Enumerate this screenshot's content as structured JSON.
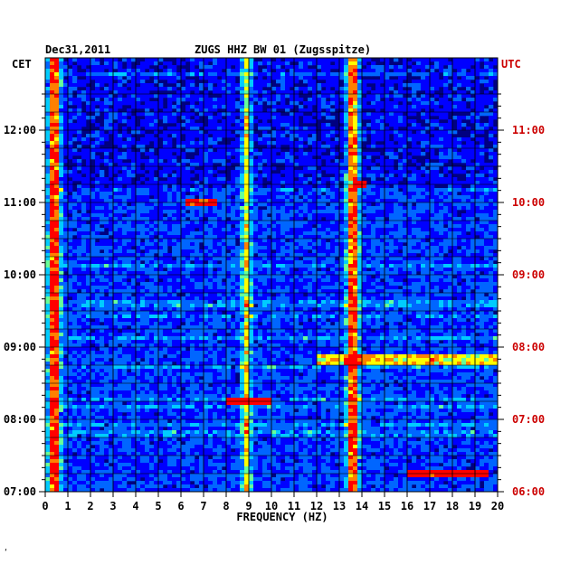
{
  "header": {
    "date": "Dec31,2011",
    "station": "ZUGS HHZ BW 01 (Zugsspitze)"
  },
  "axes": {
    "left_zone": "CET",
    "right_zone": "UTC",
    "right_color": "#cc0000"
  },
  "footer_mark": "‘",
  "chart_data": {
    "type": "heatmap",
    "title": "ZUGS HHZ BW 01 (Zugsspitze)",
    "xlabel": "FREQUENCY (HZ)",
    "ylabel": "",
    "xlim": [
      0,
      20
    ],
    "xticks": [
      "0",
      "1",
      "2",
      "3",
      "4",
      "5",
      "6",
      "7",
      "8",
      "9",
      "10",
      "11",
      "12",
      "13",
      "14",
      "15",
      "16",
      "17",
      "18",
      "19",
      "20"
    ],
    "left_time_range": [
      "07:00",
      "12:30"
    ],
    "left_ticks": [
      "12:00",
      "11:00",
      "10:00",
      "09:00",
      "08:00",
      "07:00"
    ],
    "right_ticks": [
      "11:00",
      "10:00",
      "09:00",
      "08:00",
      "07:00",
      "06:00"
    ],
    "grid": true,
    "colormap": [
      "#000080",
      "#0000ff",
      "#0066ff",
      "#00ccff",
      "#66ff99",
      "#ffff00",
      "#ff8000",
      "#ff0000"
    ],
    "persistent_lines_hz": [
      0.3,
      0.5,
      8.9,
      13.5,
      13.7
    ],
    "events": [
      {
        "time": "11:00",
        "freq_hz": [
          6.2,
          7.6
        ],
        "level": "high"
      },
      {
        "time": "11:15",
        "freq_hz": [
          13.6,
          14.1
        ],
        "level": "high"
      },
      {
        "time": "08:50",
        "freq_hz": [
          12.0,
          20.0
        ],
        "level": "medium"
      },
      {
        "time": "08:15",
        "freq_hz": [
          8.0,
          10.0
        ],
        "level": "high"
      },
      {
        "time": "06:15",
        "freq_hz": [
          16.0,
          19.5
        ],
        "level": "high"
      }
    ]
  }
}
